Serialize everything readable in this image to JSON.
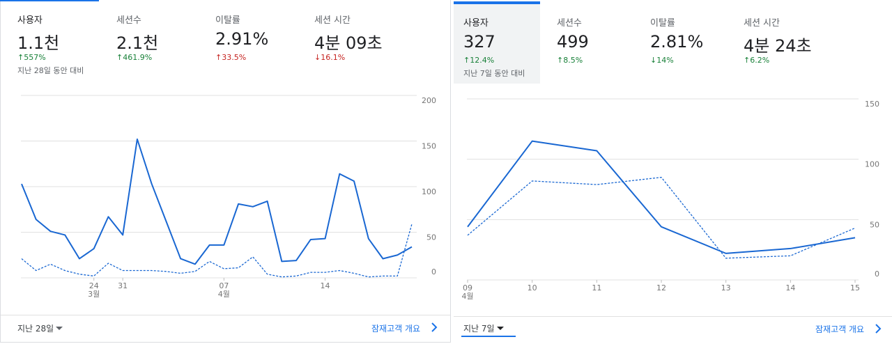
{
  "panels": [
    {
      "metrics": [
        {
          "label": "사용자",
          "value": "1.1천",
          "change": "↑557%",
          "change_color": "#188038"
        },
        {
          "label": "세션수",
          "value": "2.1천",
          "change": "↑461.9%",
          "change_color": "#188038"
        },
        {
          "label": "이탈률",
          "value": "2.91%",
          "change": "↑33.5%",
          "change_color": "#c5221f"
        },
        {
          "label": "세션 시간",
          "value": "4분 09초",
          "change": "↓16.1%",
          "change_color": "#c5221f"
        }
      ],
      "comparison": "지난 28일 동안 대비",
      "footer": {
        "range": "지난 28일",
        "link": "잠재고객 개요"
      }
    },
    {
      "metrics": [
        {
          "label": "사용자",
          "value": "327",
          "change": "↑12.4%",
          "change_color": "#188038"
        },
        {
          "label": "세션수",
          "value": "499",
          "change": "↑8.5%",
          "change_color": "#188038"
        },
        {
          "label": "이탈률",
          "value": "2.81%",
          "change": "↓14%",
          "change_color": "#188038"
        },
        {
          "label": "세션 시간",
          "value": "4분 24초",
          "change": "↑6.2%",
          "change_color": "#188038"
        }
      ],
      "comparison": "지난 7일 동안 대비",
      "footer": {
        "range": "지난 7일",
        "link": "잠재고객 개요"
      }
    }
  ],
  "chart_data": [
    {
      "type": "line",
      "categories": [
        null,
        null,
        null,
        null,
        null,
        "24",
        null,
        "31",
        null,
        null,
        null,
        null,
        null,
        null,
        "07",
        null,
        null,
        null,
        null,
        null,
        null,
        "14",
        null,
        null,
        null,
        null,
        null,
        null
      ],
      "sublabels": [
        null,
        null,
        null,
        null,
        null,
        "3월",
        null,
        null,
        null,
        null,
        null,
        null,
        null,
        null,
        "4월",
        null,
        null,
        null,
        null,
        null,
        null,
        null,
        null,
        null,
        null,
        null,
        null,
        null
      ],
      "series": [
        {
          "color": "#1967d2",
          "dashed": false,
          "values": [
            103,
            64,
            51,
            47,
            21,
            32,
            67,
            47,
            152,
            103,
            62,
            21,
            15,
            36,
            36,
            81,
            78,
            84,
            18,
            19,
            42,
            43,
            114,
            106,
            43,
            21,
            25,
            34
          ]
        },
        {
          "color": "#1967d2",
          "dashed": true,
          "values": [
            21,
            8,
            15,
            8,
            4,
            2,
            16,
            8,
            8,
            8,
            7,
            5,
            7,
            18,
            10,
            11,
            23,
            4,
            1,
            2,
            6,
            6,
            8,
            5,
            1,
            2,
            2,
            59
          ]
        }
      ],
      "ylim": [
        0,
        200
      ],
      "yticks": [
        0,
        50,
        100,
        150,
        200
      ],
      "grid": true
    },
    {
      "type": "line",
      "categories": [
        "09",
        "10",
        "11",
        "12",
        "13",
        "14",
        "15"
      ],
      "sublabels": [
        "4월",
        null,
        null,
        null,
        null,
        null,
        null
      ],
      "series": [
        {
          "color": "#1967d2",
          "dashed": false,
          "values": [
            44,
            115,
            107,
            44,
            22,
            26,
            35
          ]
        },
        {
          "color": "#1967d2",
          "dashed": true,
          "values": [
            37,
            82,
            79,
            85,
            18,
            20,
            43
          ]
        }
      ],
      "ylim": [
        0,
        150
      ],
      "yticks": [
        0,
        50,
        100,
        150
      ],
      "grid": true
    }
  ]
}
